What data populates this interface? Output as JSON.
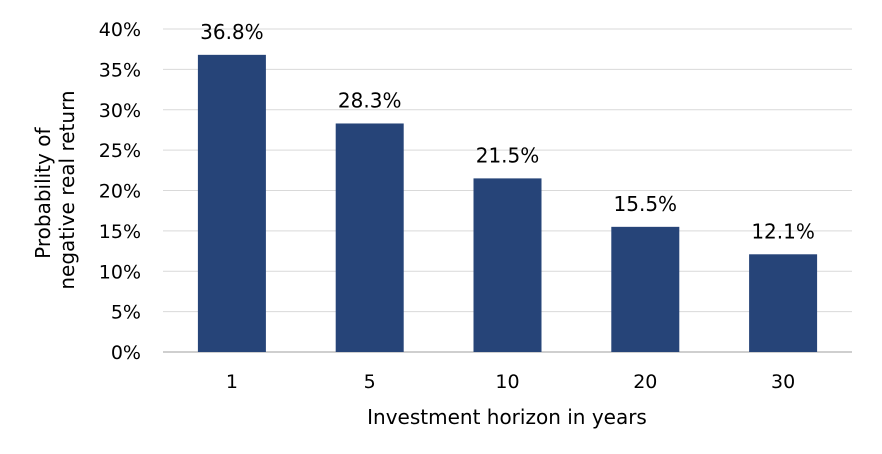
{
  "chart_data": {
    "type": "bar",
    "categories": [
      "1",
      "5",
      "10",
      "20",
      "30"
    ],
    "values": [
      36.8,
      28.3,
      21.5,
      15.5,
      12.1
    ],
    "data_labels": [
      "36.8%",
      "28.3%",
      "21.5%",
      "15.5%",
      "12.1%"
    ],
    "xlabel": "Investment horizon in years",
    "ylabel_lines": [
      "Probability of",
      "negative real return"
    ],
    "ylim": [
      0,
      40
    ],
    "yticks": [
      0,
      5,
      10,
      15,
      20,
      25,
      30,
      35,
      40
    ],
    "ytick_labels": [
      "0%",
      "5%",
      "10%",
      "15%",
      "20%",
      "25%",
      "30%",
      "35%",
      "40%"
    ],
    "grid": true,
    "legend": "none",
    "bar_color": "#264478",
    "grid_color": "#d9d9d9"
  }
}
